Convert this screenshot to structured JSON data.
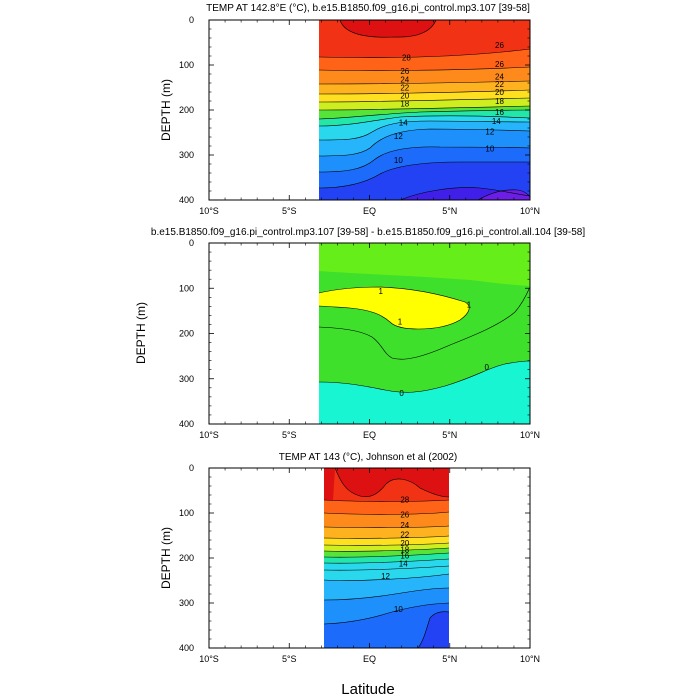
{
  "figure": {
    "xlabel": "Latitude"
  },
  "chart_data": [
    {
      "type": "contour",
      "title": "TEMP AT 142.8°E (°C), b.e15.B1850.f09_g16.pi_control.mp3.107 [39-58]",
      "xlabel": "",
      "ylabel": "DEPTH (m)",
      "xlim": [
        -10,
        10
      ],
      "ylim": [
        400,
        0
      ],
      "x_ticks": [
        "10°S",
        "5°S",
        "EQ",
        "5°N",
        "10°N"
      ],
      "y_ticks": [
        "0",
        "100",
        "200",
        "300",
        "400"
      ],
      "data_extent_x": [
        -3,
        10
      ],
      "levels": [
        10,
        12,
        14,
        16,
        18,
        20,
        22,
        24,
        26,
        28
      ],
      "contour_labels": [
        {
          "value": "28",
          "lat": 2.3,
          "depth": 83
        },
        {
          "value": "26",
          "lat": 2.2,
          "depth": 113
        },
        {
          "value": "24",
          "lat": 2.2,
          "depth": 132
        },
        {
          "value": "22",
          "lat": 2.2,
          "depth": 150
        },
        {
          "value": "20",
          "lat": 2.2,
          "depth": 168
        },
        {
          "value": "18",
          "lat": 2.2,
          "depth": 186
        },
        {
          "value": "14",
          "lat": 2.1,
          "depth": 228
        },
        {
          "value": "12",
          "lat": 1.8,
          "depth": 258
        },
        {
          "value": "10",
          "lat": 1.8,
          "depth": 311
        },
        {
          "value": "26",
          "lat": 8.1,
          "depth": 56
        },
        {
          "value": "26",
          "lat": 8.1,
          "depth": 98
        },
        {
          "value": "24",
          "lat": 8.1,
          "depth": 125
        },
        {
          "value": "22",
          "lat": 8.1,
          "depth": 142
        },
        {
          "value": "20",
          "lat": 8.1,
          "depth": 160
        },
        {
          "value": "18",
          "lat": 8.1,
          "depth": 180
        },
        {
          "value": "16",
          "lat": 8.1,
          "depth": 204
        },
        {
          "value": "14",
          "lat": 7.9,
          "depth": 224
        },
        {
          "value": "12",
          "lat": 7.5,
          "depth": 248
        },
        {
          "value": "10",
          "lat": 7.5,
          "depth": 285
        }
      ]
    },
    {
      "type": "contour",
      "title": "b.e15.B1850.f09_g16.pi_control.mp3.107 [39-58] - b.e15.B1850.f09_g16.pi_control.all.104 [39-58]",
      "xlabel": "",
      "ylabel": "DEPTH (m)",
      "xlim": [
        -10,
        10
      ],
      "ylim": [
        400,
        0
      ],
      "x_ticks": [
        "10°S",
        "5°S",
        "EQ",
        "5°N",
        "10°N"
      ],
      "y_ticks": [
        "0",
        "100",
        "200",
        "300",
        "400"
      ],
      "data_extent_x": [
        -3,
        10
      ],
      "levels": [
        0,
        1
      ],
      "contour_labels": [
        {
          "value": "1",
          "lat": 0.7,
          "depth": 106
        },
        {
          "value": "1",
          "lat": 1.9,
          "depth": 174
        },
        {
          "value": "1",
          "lat": 6.2,
          "depth": 136
        },
        {
          "value": "0",
          "lat": 2.0,
          "depth": 332
        },
        {
          "value": "0",
          "lat": 7.3,
          "depth": 274
        }
      ]
    },
    {
      "type": "contour",
      "title": "TEMP AT 143 (°C), Johnson et al (2002)",
      "xlabel": "",
      "ylabel": "DEPTH (m)",
      "xlim": [
        -10,
        10
      ],
      "ylim": [
        400,
        0
      ],
      "x_ticks": [
        "10°S",
        "5°S",
        "EQ",
        "5°N",
        "10°N"
      ],
      "y_ticks": [
        "0",
        "100",
        "200",
        "300",
        "400"
      ],
      "data_extent_x": [
        -2.7,
        5
      ],
      "levels": [
        10,
        12,
        14,
        16,
        18,
        20,
        22,
        24,
        26,
        28
      ],
      "contour_labels": [
        {
          "value": "28",
          "lat": 2.2,
          "depth": 70
        },
        {
          "value": "26",
          "lat": 2.2,
          "depth": 103
        },
        {
          "value": "24",
          "lat": 2.2,
          "depth": 127
        },
        {
          "value": "22",
          "lat": 2.2,
          "depth": 148
        },
        {
          "value": "20",
          "lat": 2.2,
          "depth": 167
        },
        {
          "value": "18",
          "lat": 2.2,
          "depth": 181
        },
        {
          "value": "16",
          "lat": 2.2,
          "depth": 194
        },
        {
          "value": "14",
          "lat": 2.1,
          "depth": 212
        },
        {
          "value": "12",
          "lat": 1.0,
          "depth": 240
        },
        {
          "value": "10",
          "lat": 1.8,
          "depth": 313
        }
      ]
    }
  ],
  "colors": {
    "frame": "#000000",
    "t_ge28": "#dd1111",
    "t_26": "#f23215",
    "t_24": "#ff6318",
    "t_22": "#ff8a1c",
    "t_20": "#ffb21f",
    "t_18": "#ffe020",
    "t_16": "#cfee20",
    "t_14": "#56e43a",
    "t_12": "#23e6a9",
    "t_10": "#2ad8ee",
    "t_8": "#26b4fa",
    "t_6": "#1e90fc",
    "t_4": "#1d6bfa",
    "t_2": "#2342f3",
    "t_0": "#4020e8",
    "t_neg": "#6c1ee6",
    "d_gt1": "#ffff00",
    "d_0_1": "#3fe02b",
    "d_0_1_top": "#66ee1a",
    "d_lt0": "#18f5d2"
  }
}
